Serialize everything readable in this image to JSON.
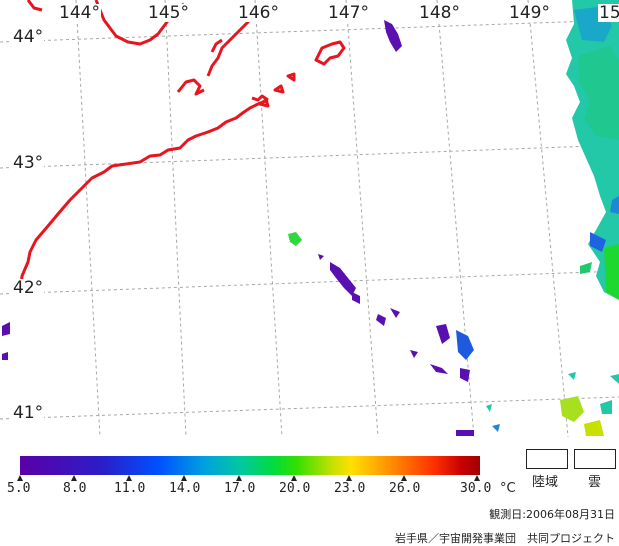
{
  "map": {
    "longitude_labels": [
      "144°",
      "145°",
      "146°",
      "147°",
      "148°",
      "149°",
      "15"
    ],
    "latitude_labels": [
      "44°",
      "43°",
      "42°",
      "41°"
    ]
  },
  "colorbar": {
    "ticks": [
      "5.0",
      "8.0",
      "11.0",
      "14.0",
      "17.0",
      "20.0",
      "23.0",
      "26.0",
      "30.0"
    ],
    "unit": "°C"
  },
  "legend": {
    "land_label": "陸域",
    "cloud_label": "雲"
  },
  "observation_date": "観測日:2006年08月31日",
  "credit": "岩手県／宇宙開発事業団　共同プロジェクト",
  "colors": {
    "coastline": "#e8141e",
    "grid": "#a8a8a8"
  }
}
